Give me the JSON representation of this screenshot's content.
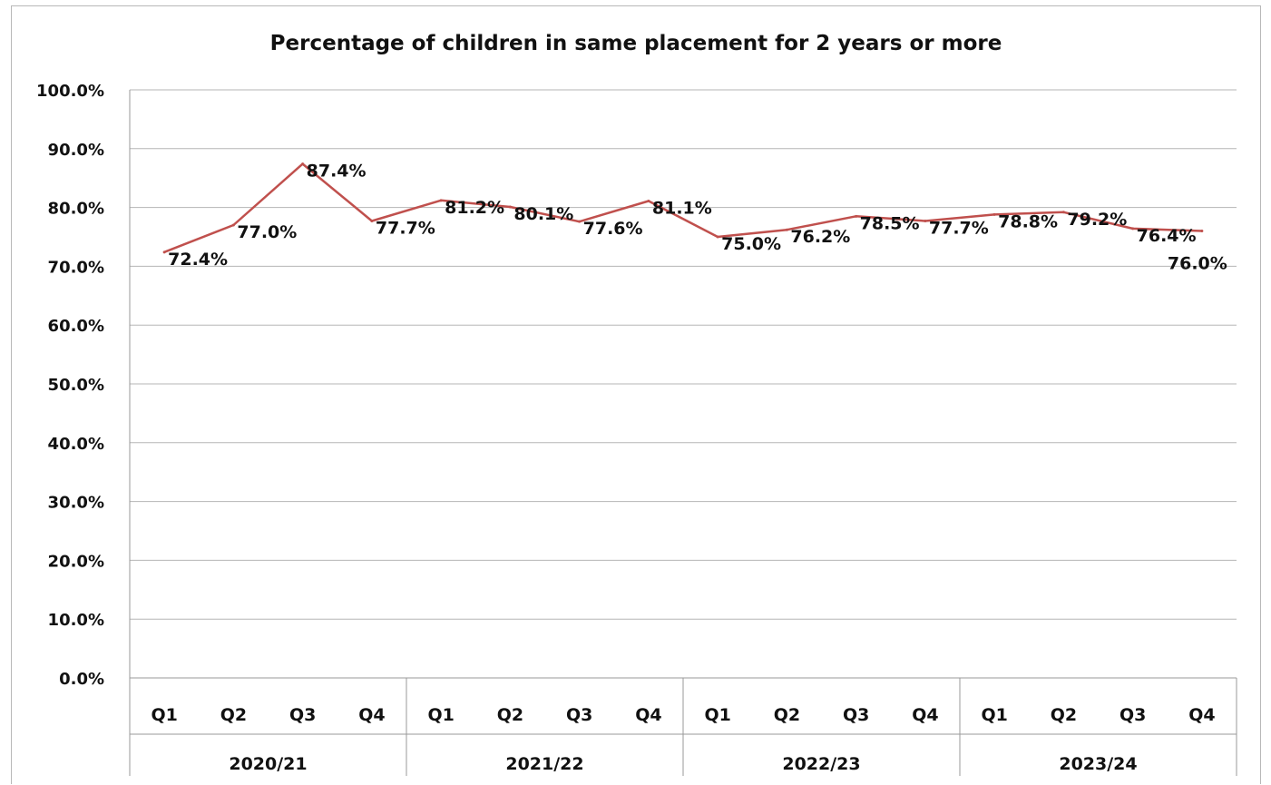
{
  "chart_data": {
    "type": "line",
    "title": "Percentage of children in same placement for 2 years or more",
    "xlabel": "",
    "ylabel": "",
    "ylim": [
      0,
      100
    ],
    "y_ticks": [
      "0.0%",
      "10.0%",
      "20.0%",
      "30.0%",
      "40.0%",
      "50.0%",
      "60.0%",
      "70.0%",
      "80.0%",
      "90.0%",
      "100.0%"
    ],
    "y_tick_values": [
      0,
      10,
      20,
      30,
      40,
      50,
      60,
      70,
      80,
      90,
      100
    ],
    "groups": [
      "2020/21",
      "2021/22",
      "2022/23",
      "2023/24"
    ],
    "categories": [
      "Q1",
      "Q2",
      "Q3",
      "Q4",
      "Q1",
      "Q2",
      "Q3",
      "Q4",
      "Q1",
      "Q2",
      "Q3",
      "Q4",
      "Q1",
      "Q2",
      "Q3",
      "Q4"
    ],
    "values": [
      72.4,
      77.0,
      87.4,
      77.7,
      81.2,
      80.1,
      77.6,
      81.1,
      75.0,
      76.2,
      78.5,
      77.7,
      78.8,
      79.2,
      76.4,
      76.0
    ],
    "data_labels": [
      "72.4%",
      "77.0%",
      "87.4%",
      "77.7%",
      "81.2%",
      "80.1%",
      "77.6%",
      "81.1%",
      "75.0%",
      "76.2%",
      "78.5%",
      "77.7%",
      "78.8%",
      "79.2%",
      "76.4%",
      "76.0%"
    ],
    "line_color": "#c0504d",
    "grid": true,
    "legend": "none"
  }
}
